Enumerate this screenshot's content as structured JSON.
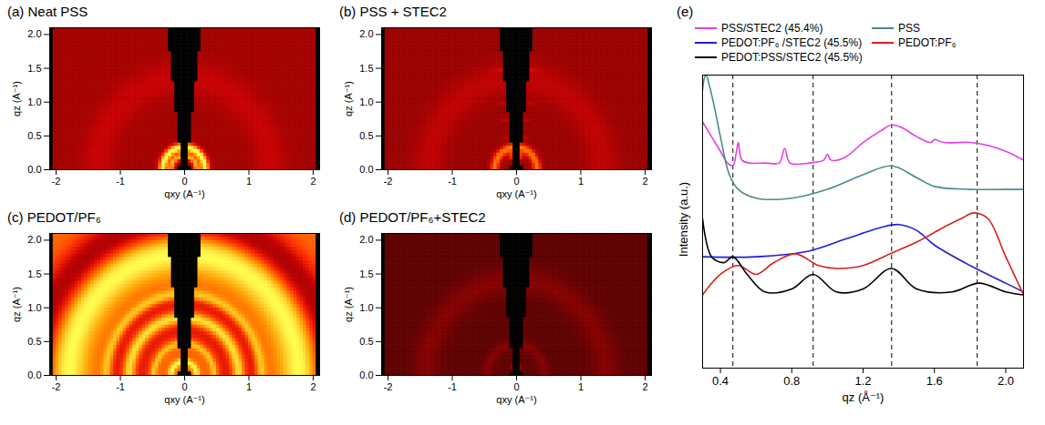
{
  "chart_data": [
    {
      "type": "image",
      "title": "(a) Neat PSS",
      "x_label": "qxy (A⁻¹)",
      "y_label": "qz (A⁻¹)",
      "xlim": [
        -2.1,
        2.1
      ],
      "ylim": [
        0,
        2.1
      ],
      "xticks": [
        -2,
        -1,
        0,
        1,
        2
      ],
      "yticks": [
        {
          "value": 0,
          "label": "0.0"
        },
        {
          "value": 0.5,
          "label": "0.5"
        },
        {
          "value": 1,
          "label": "1.0"
        },
        {
          "value": 1.5,
          "label": "1.5"
        },
        {
          "value": 2,
          "label": "2.0"
        }
      ],
      "intensity_range": [
        0,
        1
      ],
      "background": 0.28,
      "rings": [
        {
          "q": 0.2,
          "intensity": 0.55,
          "width": 0.05
        },
        {
          "q": 0.33,
          "intensity": 0.75,
          "width": 0.07
        },
        {
          "q": 1.35,
          "intensity": 0.12,
          "width": 0.25
        }
      ]
    },
    {
      "type": "image",
      "title": "(b) PSS + STEC2",
      "x_label": "qxy (A⁻¹)",
      "y_label": "qz (A⁻¹)",
      "xlim": [
        -2.1,
        2.1
      ],
      "ylim": [
        0,
        2.1
      ],
      "xticks": [
        -2,
        -1,
        0,
        1,
        2
      ],
      "yticks": [
        {
          "value": 0,
          "label": "0.0"
        },
        {
          "value": 0.5,
          "label": "0.5"
        },
        {
          "value": 1,
          "label": "1.0"
        },
        {
          "value": 1.5,
          "label": "1.5"
        },
        {
          "value": 2,
          "label": "2.0"
        }
      ],
      "intensity_range": [
        0,
        1
      ],
      "background": 0.25,
      "rings": [
        {
          "q": 0.2,
          "intensity": 0.7,
          "width": 0.06,
          "spread": 25
        },
        {
          "q": 0.33,
          "intensity": 0.5,
          "width": 0.07
        },
        {
          "q": 0.5,
          "intensity": 0.45,
          "width": 0.02,
          "spread": 15
        },
        {
          "q": 0.75,
          "intensity": 0.3,
          "width": 0.02,
          "spread": 15
        },
        {
          "q": 1.0,
          "intensity": 0.25,
          "width": 0.02,
          "spread": 12
        },
        {
          "q": 1.35,
          "intensity": 0.12,
          "width": 0.25
        },
        {
          "q": 1.5,
          "intensity": 0.2,
          "width": 0.03,
          "spread": 12
        }
      ]
    },
    {
      "type": "image",
      "title": "(c) PEDOT/PF₆",
      "x_label": "qxy (A⁻¹)",
      "y_label": "qz (A⁻¹)",
      "xlim": [
        -2.1,
        2.1
      ],
      "ylim": [
        0,
        2.1
      ],
      "xticks": [
        -2,
        -1,
        0,
        1,
        2
      ],
      "yticks": [
        {
          "value": 0,
          "label": "0.0"
        },
        {
          "value": 0.5,
          "label": "0.5"
        },
        {
          "value": 1,
          "label": "1.0"
        },
        {
          "value": 1.5,
          "label": "1.5"
        },
        {
          "value": 2,
          "label": "2.0"
        }
      ],
      "intensity_range": [
        0,
        1
      ],
      "background": 0.7,
      "rings": [
        {
          "q": 0.2,
          "intensity": 0.3,
          "width": 0.05
        },
        {
          "q": 0.47,
          "intensity": 0.2,
          "width": 0.05
        },
        {
          "q": 0.65,
          "intensity": -0.2,
          "width": 0.1
        },
        {
          "q": 0.85,
          "intensity": 0.25,
          "width": 0.08
        },
        {
          "q": 1.05,
          "intensity": -0.2,
          "width": 0.1
        },
        {
          "q": 1.2,
          "intensity": 0.2,
          "width": 0.08
        },
        {
          "q": 1.8,
          "intensity": 0.3,
          "width": 0.3
        },
        {
          "q": 2.3,
          "intensity": -0.4,
          "width": 0.25
        }
      ]
    },
    {
      "type": "image",
      "title": "(d) PEDOT/PF₆+STEC2",
      "x_label": "qxy (A⁻¹)",
      "y_label": "qz (A⁻¹)",
      "xlim": [
        -2.1,
        2.1
      ],
      "ylim": [
        0,
        2.1
      ],
      "xticks": [
        -2,
        -1,
        0,
        1,
        2
      ],
      "yticks": [
        {
          "value": 0,
          "label": "0.0"
        },
        {
          "value": 0.5,
          "label": "0.5"
        },
        {
          "value": 1,
          "label": "1.0"
        },
        {
          "value": 1.5,
          "label": "1.5"
        },
        {
          "value": 2,
          "label": "2.0"
        }
      ],
      "intensity_range": [
        0,
        1
      ],
      "background": 0.08,
      "rings": [
        {
          "q": 0.12,
          "intensity": 0.6,
          "width": 0.04,
          "spread": 30
        },
        {
          "q": 0.45,
          "intensity": 0.1,
          "width": 0.08
        },
        {
          "q": 1.4,
          "intensity": 0.1,
          "width": 0.2
        }
      ]
    },
    {
      "type": "line",
      "title": "(e)",
      "x_label": "qz (Å⁻¹)",
      "y_label": "Intensity (a.u.)",
      "xlim": [
        0.3,
        2.1
      ],
      "ylim": [
        0,
        100
      ],
      "xticks": [
        0.4,
        0.8,
        1.2,
        1.6,
        {
          "value": 2.0,
          "label": "2.0"
        }
      ],
      "yticks": [],
      "tick_labels": "x",
      "legend": "top",
      "vlines": [
        0.47,
        0.92,
        1.36,
        1.84
      ],
      "series": [
        {
          "name": "PSS/STEC2 (45.4%)",
          "color": "#e040e0",
          "x": [
            0.3,
            0.35,
            0.4,
            0.44,
            0.47,
            0.49,
            0.5,
            0.52,
            0.56,
            0.65,
            0.73,
            0.76,
            0.79,
            0.9,
            0.98,
            1.0,
            1.02,
            1.1,
            1.2,
            1.3,
            1.36,
            1.42,
            1.5,
            1.58,
            1.6,
            1.65,
            1.8,
            1.9,
            2.0,
            2.1
          ],
          "values": [
            84,
            79,
            74,
            70,
            69,
            74,
            77,
            71,
            70,
            70,
            70,
            75,
            70,
            70,
            71,
            73,
            71,
            72,
            77,
            81,
            83,
            82,
            79,
            77,
            78,
            77,
            77,
            76,
            74,
            71
          ]
        },
        {
          "name": "PSS",
          "color": "#4a8a8a",
          "x": [
            0.3,
            0.31,
            0.32,
            0.34,
            0.37,
            0.4,
            0.45,
            0.5,
            0.6,
            0.8,
            1.0,
            1.2,
            1.36,
            1.5,
            1.6,
            1.8,
            2.0,
            2.1
          ],
          "values": [
            95,
            99,
            100,
            96,
            88,
            79,
            66,
            61,
            58,
            58,
            61,
            66,
            69,
            65,
            62,
            61,
            61,
            61
          ]
        },
        {
          "name": "PEDOT:PF₆ /STEC2 (45.5%)",
          "color": "#1f1fd8",
          "x": [
            0.3,
            0.6,
            0.9,
            1.1,
            1.3,
            1.4,
            1.5,
            1.6,
            1.8,
            2.0,
            2.1
          ],
          "values": [
            38,
            38,
            40,
            44,
            48,
            49,
            47,
            42,
            35,
            29,
            26
          ]
        },
        {
          "name": "PEDOT:PF₆",
          "color": "#d62020",
          "x": [
            0.3,
            0.4,
            0.5,
            0.6,
            0.7,
            0.82,
            0.95,
            1.05,
            1.2,
            1.35,
            1.5,
            1.65,
            1.75,
            1.82,
            1.9,
            2.0,
            2.1
          ],
          "values": [
            25,
            32,
            35,
            32,
            36,
            39,
            35,
            34,
            35,
            39,
            43,
            48,
            51,
            53,
            51,
            38,
            25
          ]
        },
        {
          "name": "PEDOT:PSS/STEC2 (45.5%)",
          "color": "#000000",
          "x": [
            0.3,
            0.35,
            0.42,
            0.47,
            0.55,
            0.65,
            0.8,
            0.92,
            1.05,
            1.2,
            1.36,
            1.5,
            1.7,
            1.85,
            2.0,
            2.1
          ],
          "values": [
            51,
            38,
            36,
            38,
            32,
            26,
            27,
            32,
            26,
            27,
            34,
            27,
            26,
            29,
            26,
            25
          ]
        }
      ]
    }
  ]
}
